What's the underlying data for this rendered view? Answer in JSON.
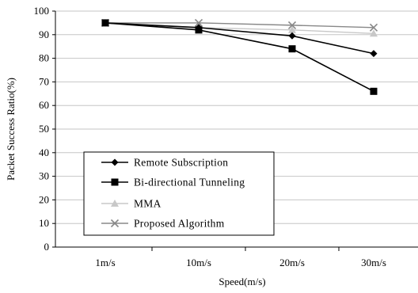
{
  "chart_data": {
    "type": "line",
    "title": "",
    "xlabel": "Speed(m/s)",
    "ylabel": "Packet Success Ratio(%)",
    "categories": [
      "1m/s",
      "10m/s",
      "20m/s",
      "30m/s"
    ],
    "ylim": [
      0,
      100
    ],
    "yticks": [
      0,
      10,
      20,
      30,
      40,
      50,
      60,
      70,
      80,
      90,
      100
    ],
    "grid": "horizontal",
    "legend_position": "lower-left",
    "series": [
      {
        "name": "Remote Subscription",
        "values": [
          95,
          93,
          89.5,
          82
        ],
        "color": "#000000",
        "marker": "diamond"
      },
      {
        "name": "Bi-directional Tunneling",
        "values": [
          95,
          92,
          84,
          66
        ],
        "color": "#000000",
        "marker": "square"
      },
      {
        "name": "MMA",
        "values": [
          95,
          93,
          92,
          90.5
        ],
        "color": "#c8c8c8",
        "marker": "triangle"
      },
      {
        "name": "Proposed Algorithm",
        "values": [
          95,
          95,
          94,
          93
        ],
        "color": "#888888",
        "marker": "x"
      }
    ]
  }
}
